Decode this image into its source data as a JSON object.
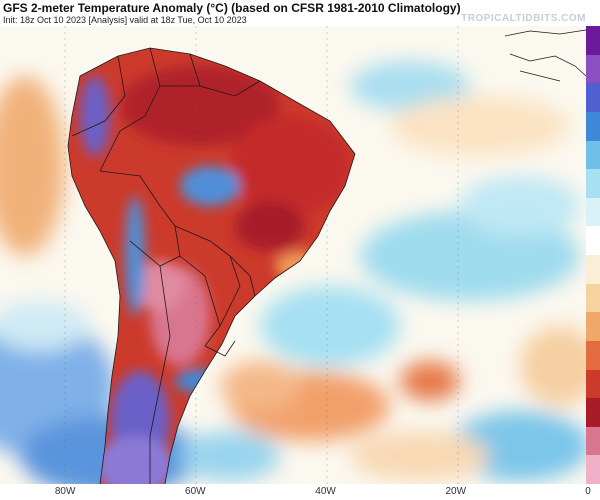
{
  "header": {
    "title": "GFS 2-meter Temperature Anomaly (°C) (based on CFSR 1981-2010 Climatology)",
    "subtitle": "Init: 18z Oct 10 2023   [Analysis]   valid at 18z Tue, Oct 10 2023",
    "watermark": "TROPICALTIDBITS.COM"
  },
  "axis": {
    "x_ticks": [
      {
        "label": "80W",
        "lon": -80
      },
      {
        "label": "60W",
        "lon": -60
      },
      {
        "label": "40W",
        "lon": -40
      },
      {
        "label": "20W",
        "lon": -20
      },
      {
        "label": "0",
        "lon": 0
      }
    ]
  },
  "colors": {
    "ocean_neutral": "#fbf8ef",
    "warm_light": "#f6ddb2",
    "warm_orange": "#ef9a5a",
    "hot_red": "#cc3a2b",
    "very_hot": "#b0202a",
    "extreme_pink": "#d9768f",
    "cool_light": "#bfe8f5",
    "cool_cyan": "#8fd5ea",
    "cold_blue": "#4f8fd8",
    "very_cold": "#6a60c8",
    "borders": "#1a1a1a"
  },
  "colorbar": {
    "colors": [
      "#6a1a9a",
      "#8a4fc0",
      "#5060d0",
      "#3f88d8",
      "#6ec0e8",
      "#a8e0f2",
      "#d8f2f8",
      "#ffffff",
      "#fbeed6",
      "#f6d2a0",
      "#f0a868",
      "#e26b40",
      "#cc3a2b",
      "#a81c2a",
      "#d9768f",
      "#f0b0c8"
    ]
  }
}
